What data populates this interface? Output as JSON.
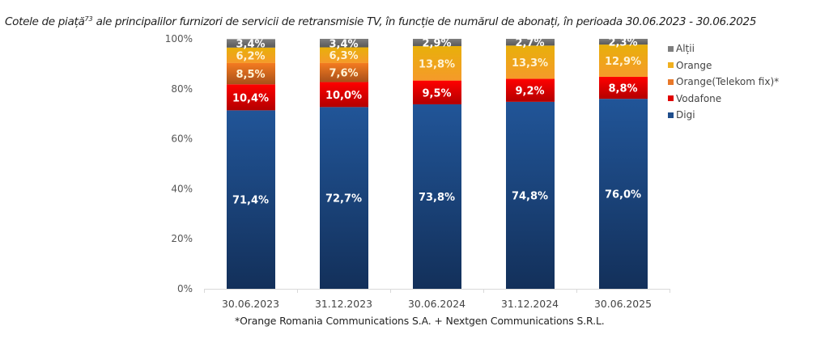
{
  "title": {
    "text": "Cotele de piață",
    "footnote_ref": "73",
    "rest": " ale principalilor furnizori de servicii de retransmisie TV, în funcție de numărul de abonați, în perioada 30.06.2023 - 30.06.2025"
  },
  "footnote": "*Orange Romania Communications S.A. + Nextgen Communications S.R.L.",
  "chart_data": {
    "type": "bar",
    "stacked": true,
    "percent_stacked": true,
    "title": "Cotele de piață ale principalilor furnizori de servicii de retransmisie TV, în funcție de numărul de abonați, în perioada 30.06.2023 - 30.06.2025",
    "xlabel": "",
    "ylabel": "",
    "ylim": [
      0,
      100
    ],
    "yticks": [
      "0%",
      "20%",
      "40%",
      "60%",
      "80%",
      "100%"
    ],
    "ytick_values": [
      0,
      20,
      40,
      60,
      80,
      100
    ],
    "grid": false,
    "legend_position": "right",
    "categories": [
      "30.06.2023",
      "31.12.2023",
      "30.06.2024",
      "31.12.2024",
      "30.06.2025"
    ],
    "series": [
      {
        "name": "Digi",
        "color": "#1F4E8C",
        "color_dark": "#13305A",
        "label_color": "#FFFFFF",
        "values": [
          71.4,
          72.7,
          73.8,
          74.8,
          76.0
        ],
        "labels": [
          "71,4%",
          "72,7%",
          "73,8%",
          "74,8%",
          "76,0%"
        ]
      },
      {
        "name": "Vodafone",
        "color": "#FF0000",
        "color_dark": "#B30000",
        "label_color": "#FFFFFF",
        "values": [
          10.4,
          10.0,
          9.5,
          9.2,
          8.8
        ],
        "labels": [
          "10,4%",
          "10,0%",
          "9,5%",
          "9,2%",
          "8,8%"
        ]
      },
      {
        "name": "Orange(Telekom fix)*",
        "color": "#F47B20",
        "color_dark": "#A8501A",
        "label_color": "#FFF3D6",
        "values": [
          8.5,
          7.6,
          0,
          0,
          0
        ],
        "labels": [
          "8,5%",
          "7,6%",
          "",
          "",
          ""
        ]
      },
      {
        "name": "Orange",
        "color": "#E8B00A",
        "color_dark": "#F59A2A",
        "label_color": "#FFF3D6",
        "values": [
          6.2,
          6.3,
          13.8,
          13.3,
          12.9
        ],
        "labels": [
          "6,2%",
          "6,3%",
          "13,8%",
          "13,3%",
          "12,9%"
        ]
      },
      {
        "name": "Alții",
        "color": "#7F7F7F",
        "color_dark": "#595959",
        "label_color": "#FFFFFF",
        "values": [
          3.4,
          3.4,
          2.9,
          2.7,
          2.3
        ],
        "labels": [
          "3,4%",
          "3,4%",
          "2,9%",
          "2,7%",
          "2,3%"
        ]
      }
    ]
  },
  "legend": [
    {
      "label": "Alții",
      "color": "#7F7F7F"
    },
    {
      "label": "Orange",
      "color": "#F0B020"
    },
    {
      "label": "Orange(Telekom fix)*",
      "color": "#E8782A"
    },
    {
      "label": "Vodafone",
      "color": "#E00000"
    },
    {
      "label": "Digi",
      "color": "#1F4E8C"
    }
  ]
}
